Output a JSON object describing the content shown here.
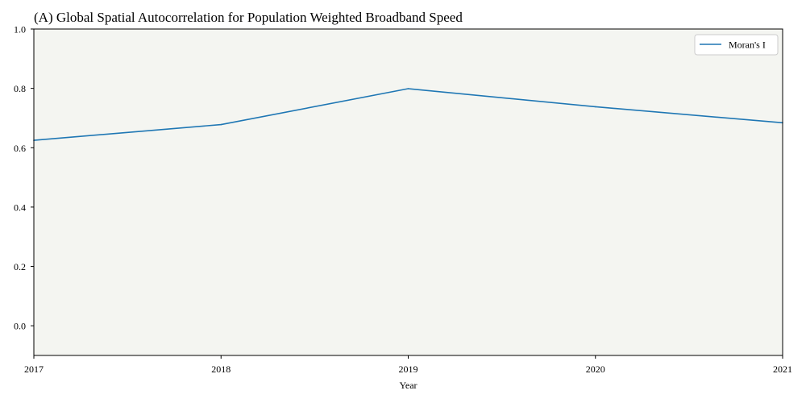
{
  "chart_data": {
    "type": "line",
    "title": "(A) Global Spatial Autocorrelation for Population Weighted Broadband Speed",
    "xlabel": "Year",
    "ylabel": "",
    "x": [
      2017,
      2018,
      2019,
      2020,
      2021
    ],
    "x_tick_labels": [
      "2017",
      "2018",
      "2019",
      "2020",
      "2021"
    ],
    "xlim": [
      2017,
      2021
    ],
    "y_ticks": [
      0.0,
      0.2,
      0.4,
      0.6,
      0.8,
      1.0
    ],
    "y_tick_labels": [
      "0.0",
      "0.2",
      "0.4",
      "0.6",
      "0.8",
      "1.0"
    ],
    "ylim": [
      -0.1,
      1.0
    ],
    "grid": false,
    "legend_position": "top-right",
    "plot_background": "#f4f5f1",
    "series": [
      {
        "name": "Moran's I",
        "color": "#1f77b4",
        "values": [
          0.625,
          0.678,
          0.799,
          0.738,
          0.684
        ]
      }
    ]
  }
}
